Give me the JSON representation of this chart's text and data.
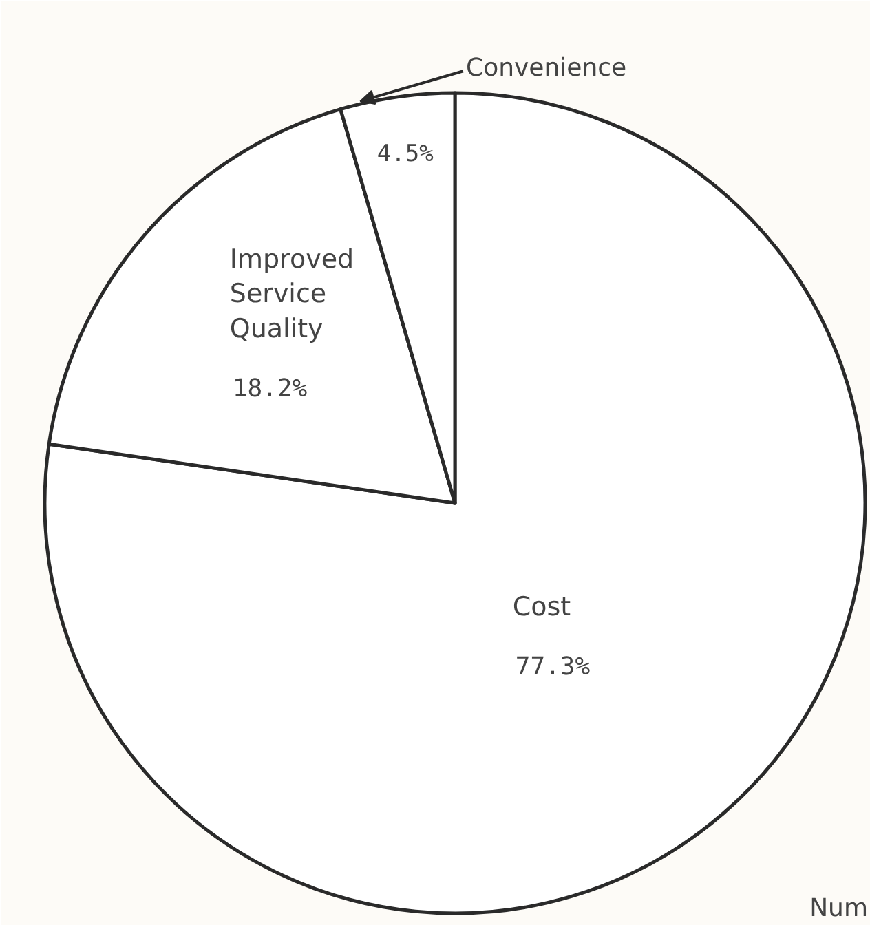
{
  "chart_data": {
    "type": "pie",
    "categories": [
      "Cost",
      "Improved Service Quality",
      "Convenience"
    ],
    "values": [
      77.3,
      18.2,
      4.5
    ],
    "value_labels": [
      "77.3%",
      "18.2%",
      "4.5%"
    ],
    "colors": [
      "#ffffff",
      "#ffffff",
      "#ffffff"
    ],
    "annotations": [
      "Num"
    ]
  }
}
